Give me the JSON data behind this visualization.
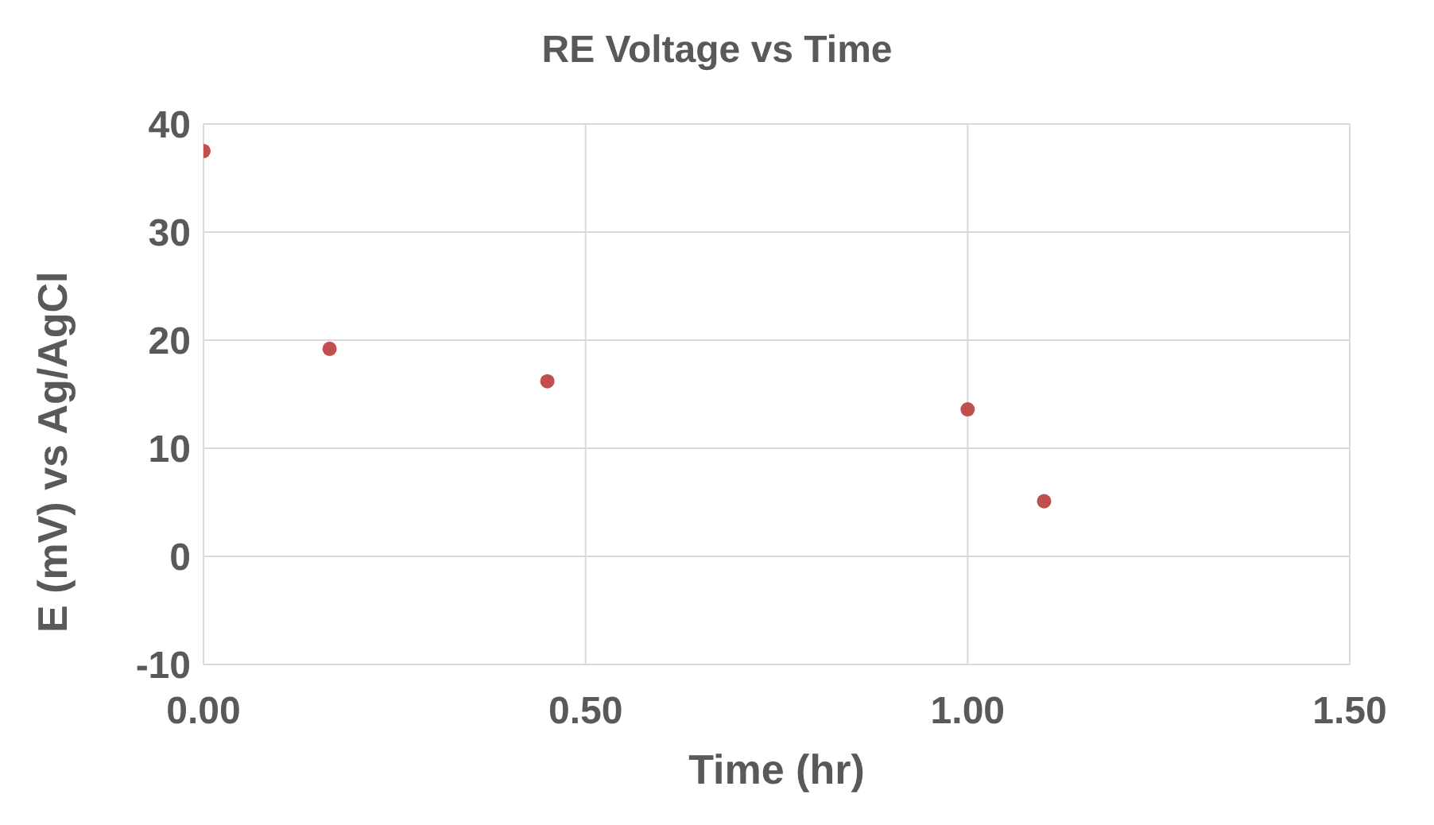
{
  "chart_data": {
    "type": "scatter",
    "title": "RE Voltage vs Time",
    "xlabel": "Time (hr)",
    "ylabel": "E (mV) vs Ag/AgCl",
    "x": [
      0,
      0.165,
      0.45,
      1.0,
      1.1
    ],
    "series": [
      {
        "color": "#c0504d",
        "values": [
          37.5,
          19.2,
          16.2,
          13.6,
          5.1
        ]
      }
    ],
    "xlim": [
      0,
      1.5
    ],
    "xticks": [
      {
        "value": 0,
        "label": "0.00"
      },
      {
        "value": 0.5,
        "label": "0.50"
      },
      {
        "value": 1,
        "label": "1.00"
      },
      {
        "value": 1.5,
        "label": "1.50"
      }
    ],
    "ylim": [
      -10,
      40
    ],
    "yticks": [
      -10,
      0,
      10,
      20,
      30,
      40
    ],
    "grid": true,
    "marker": "circle",
    "legend": false
  }
}
